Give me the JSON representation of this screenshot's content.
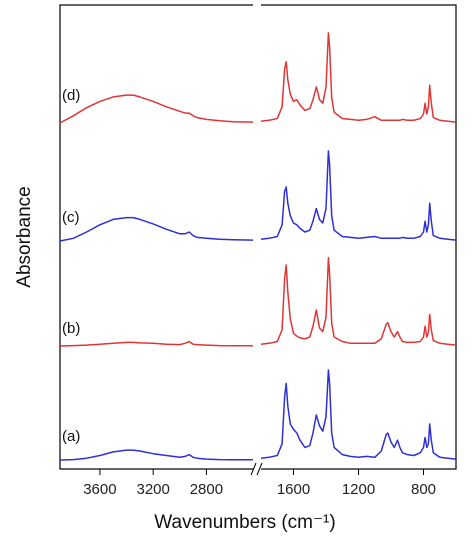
{
  "chart_data": {
    "type": "line",
    "title": "",
    "xlabel": "Wavenumbers (cm⁻¹)",
    "ylabel": "Absorbance",
    "x_reversed": true,
    "broken_x_axis": true,
    "x_segments": [
      {
        "xlim": [
          3900,
          2450
        ],
        "ticks": [
          3600,
          3200,
          2800
        ]
      },
      {
        "xlim": [
          1800,
          600
        ],
        "ticks": [
          1600,
          1200,
          800
        ]
      }
    ],
    "y_ticks_labeled": false,
    "grid": false,
    "legend": "none",
    "series": [
      {
        "label": "(a)",
        "color": "#2f2fd6",
        "points": [
          [
            3900,
            0.0
          ],
          [
            3800,
            0.5
          ],
          [
            3700,
            2
          ],
          [
            3600,
            5
          ],
          [
            3500,
            9
          ],
          [
            3400,
            11
          ],
          [
            3350,
            11
          ],
          [
            3300,
            10
          ],
          [
            3200,
            7
          ],
          [
            3100,
            5
          ],
          [
            3000,
            3
          ],
          [
            2960,
            4
          ],
          [
            2930,
            6
          ],
          [
            2900,
            3
          ],
          [
            2870,
            2
          ],
          [
            2800,
            1
          ],
          [
            2700,
            0.5
          ],
          [
            2600,
            0.3
          ],
          [
            2450,
            0.2
          ],
          [
            1800,
            2
          ],
          [
            1750,
            3
          ],
          [
            1700,
            5
          ],
          [
            1670,
            18
          ],
          [
            1655,
            70
          ],
          [
            1645,
            85
          ],
          [
            1635,
            60
          ],
          [
            1620,
            40
          ],
          [
            1600,
            34
          ],
          [
            1580,
            30
          ],
          [
            1560,
            22
          ],
          [
            1530,
            14
          ],
          [
            1500,
            16
          ],
          [
            1480,
            30
          ],
          [
            1460,
            50
          ],
          [
            1450,
            44
          ],
          [
            1440,
            38
          ],
          [
            1420,
            32
          ],
          [
            1400,
            48
          ],
          [
            1385,
            100
          ],
          [
            1378,
            85
          ],
          [
            1365,
            30
          ],
          [
            1350,
            14
          ],
          [
            1300,
            6
          ],
          [
            1250,
            4
          ],
          [
            1200,
            3
          ],
          [
            1150,
            4
          ],
          [
            1100,
            3
          ],
          [
            1060,
            10
          ],
          [
            1030,
            28
          ],
          [
            1020,
            30
          ],
          [
            1000,
            20
          ],
          [
            980,
            14
          ],
          [
            960,
            22
          ],
          [
            945,
            14
          ],
          [
            930,
            8
          ],
          [
            900,
            6
          ],
          [
            860,
            5
          ],
          [
            820,
            8
          ],
          [
            800,
            14
          ],
          [
            790,
            25
          ],
          [
            780,
            14
          ],
          [
            770,
            18
          ],
          [
            762,
            40
          ],
          [
            752,
            22
          ],
          [
            740,
            8
          ],
          [
            700,
            3
          ],
          [
            650,
            2
          ],
          [
            600,
            1
          ]
        ]
      },
      {
        "label": "(b)",
        "color": "#e03535",
        "points": [
          [
            3900,
            0.0
          ],
          [
            3800,
            0.5
          ],
          [
            3700,
            1
          ],
          [
            3600,
            2
          ],
          [
            3500,
            3
          ],
          [
            3400,
            4
          ],
          [
            3350,
            4
          ],
          [
            3300,
            3.5
          ],
          [
            3200,
            3
          ],
          [
            3100,
            2
          ],
          [
            3000,
            1.5
          ],
          [
            2960,
            3
          ],
          [
            2930,
            5
          ],
          [
            2900,
            2
          ],
          [
            2870,
            1.5
          ],
          [
            2800,
            1
          ],
          [
            2700,
            0.5
          ],
          [
            2600,
            0.3
          ],
          [
            2450,
            0.2
          ],
          [
            1800,
            2
          ],
          [
            1750,
            3
          ],
          [
            1700,
            5
          ],
          [
            1670,
            18
          ],
          [
            1655,
            75
          ],
          [
            1645,
            90
          ],
          [
            1635,
            60
          ],
          [
            1620,
            30
          ],
          [
            1600,
            14
          ],
          [
            1580,
            11
          ],
          [
            1560,
            9
          ],
          [
            1530,
            8
          ],
          [
            1500,
            10
          ],
          [
            1480,
            22
          ],
          [
            1460,
            40
          ],
          [
            1450,
            30
          ],
          [
            1440,
            20
          ],
          [
            1420,
            16
          ],
          [
            1400,
            32
          ],
          [
            1385,
            98
          ],
          [
            1378,
            80
          ],
          [
            1365,
            25
          ],
          [
            1350,
            10
          ],
          [
            1300,
            5
          ],
          [
            1250,
            3
          ],
          [
            1200,
            3
          ],
          [
            1150,
            3
          ],
          [
            1100,
            3
          ],
          [
            1060,
            8
          ],
          [
            1030,
            24
          ],
          [
            1020,
            26
          ],
          [
            1000,
            16
          ],
          [
            980,
            10
          ],
          [
            960,
            16
          ],
          [
            945,
            10
          ],
          [
            930,
            5
          ],
          [
            900,
            4
          ],
          [
            860,
            4
          ],
          [
            820,
            5
          ],
          [
            800,
            10
          ],
          [
            790,
            22
          ],
          [
            780,
            10
          ],
          [
            770,
            15
          ],
          [
            762,
            35
          ],
          [
            752,
            18
          ],
          [
            740,
            6
          ],
          [
            700,
            3
          ],
          [
            650,
            2
          ],
          [
            600,
            1
          ]
        ]
      },
      {
        "label": "(c)",
        "color": "#2f2fd6",
        "points": [
          [
            3900,
            0.0
          ],
          [
            3800,
            3
          ],
          [
            3700,
            10
          ],
          [
            3600,
            18
          ],
          [
            3500,
            24
          ],
          [
            3400,
            26
          ],
          [
            3350,
            26
          ],
          [
            3300,
            24
          ],
          [
            3200,
            19
          ],
          [
            3100,
            13
          ],
          [
            3000,
            8
          ],
          [
            2960,
            8
          ],
          [
            2930,
            10
          ],
          [
            2900,
            6
          ],
          [
            2870,
            4
          ],
          [
            2800,
            3
          ],
          [
            2700,
            2
          ],
          [
            2600,
            1.5
          ],
          [
            2450,
            1
          ],
          [
            1800,
            2
          ],
          [
            1750,
            3
          ],
          [
            1700,
            5
          ],
          [
            1670,
            18
          ],
          [
            1655,
            55
          ],
          [
            1645,
            60
          ],
          [
            1635,
            42
          ],
          [
            1620,
            28
          ],
          [
            1600,
            20
          ],
          [
            1580,
            18
          ],
          [
            1560,
            14
          ],
          [
            1530,
            10
          ],
          [
            1500,
            12
          ],
          [
            1480,
            22
          ],
          [
            1460,
            36
          ],
          [
            1450,
            30
          ],
          [
            1440,
            24
          ],
          [
            1420,
            20
          ],
          [
            1400,
            36
          ],
          [
            1385,
            100
          ],
          [
            1378,
            85
          ],
          [
            1365,
            28
          ],
          [
            1350,
            12
          ],
          [
            1300,
            5
          ],
          [
            1250,
            4
          ],
          [
            1200,
            3
          ],
          [
            1150,
            4
          ],
          [
            1100,
            5
          ],
          [
            1060,
            3
          ],
          [
            1030,
            3
          ],
          [
            1020,
            3
          ],
          [
            1000,
            3
          ],
          [
            980,
            3
          ],
          [
            960,
            3
          ],
          [
            945,
            3
          ],
          [
            930,
            4
          ],
          [
            900,
            3
          ],
          [
            860,
            3
          ],
          [
            820,
            5
          ],
          [
            800,
            10
          ],
          [
            790,
            22
          ],
          [
            780,
            10
          ],
          [
            770,
            18
          ],
          [
            762,
            42
          ],
          [
            752,
            22
          ],
          [
            740,
            6
          ],
          [
            700,
            3
          ],
          [
            650,
            2
          ],
          [
            600,
            1
          ]
        ]
      },
      {
        "label": "(d)",
        "color": "#e03535",
        "points": [
          [
            3900,
            0.0
          ],
          [
            3800,
            8
          ],
          [
            3700,
            17
          ],
          [
            3600,
            24
          ],
          [
            3500,
            29
          ],
          [
            3400,
            31
          ],
          [
            3350,
            31
          ],
          [
            3300,
            29
          ],
          [
            3200,
            24
          ],
          [
            3100,
            18
          ],
          [
            3000,
            13
          ],
          [
            2960,
            11
          ],
          [
            2930,
            11
          ],
          [
            2900,
            8
          ],
          [
            2870,
            6
          ],
          [
            2800,
            4
          ],
          [
            2700,
            2.5
          ],
          [
            2600,
            1.5
          ],
          [
            2450,
            1
          ],
          [
            1800,
            2
          ],
          [
            1750,
            3
          ],
          [
            1700,
            5
          ],
          [
            1670,
            18
          ],
          [
            1655,
            60
          ],
          [
            1645,
            68
          ],
          [
            1635,
            48
          ],
          [
            1620,
            32
          ],
          [
            1600,
            24
          ],
          [
            1580,
            26
          ],
          [
            1560,
            20
          ],
          [
            1530,
            14
          ],
          [
            1500,
            16
          ],
          [
            1480,
            26
          ],
          [
            1460,
            40
          ],
          [
            1450,
            34
          ],
          [
            1440,
            26
          ],
          [
            1420,
            22
          ],
          [
            1400,
            40
          ],
          [
            1385,
            100
          ],
          [
            1378,
            85
          ],
          [
            1365,
            28
          ],
          [
            1350,
            12
          ],
          [
            1300,
            5
          ],
          [
            1250,
            4
          ],
          [
            1200,
            3
          ],
          [
            1150,
            4
          ],
          [
            1100,
            7
          ],
          [
            1060,
            3
          ],
          [
            1030,
            3
          ],
          [
            1020,
            3
          ],
          [
            1000,
            3
          ],
          [
            980,
            3
          ],
          [
            960,
            3
          ],
          [
            945,
            3
          ],
          [
            930,
            4
          ],
          [
            900,
            3
          ],
          [
            860,
            3
          ],
          [
            820,
            5
          ],
          [
            800,
            10
          ],
          [
            790,
            22
          ],
          [
            780,
            10
          ],
          [
            770,
            18
          ],
          [
            762,
            42
          ],
          [
            752,
            22
          ],
          [
            740,
            6
          ],
          [
            700,
            3
          ],
          [
            650,
            2
          ],
          [
            600,
            1
          ]
        ]
      }
    ]
  }
}
